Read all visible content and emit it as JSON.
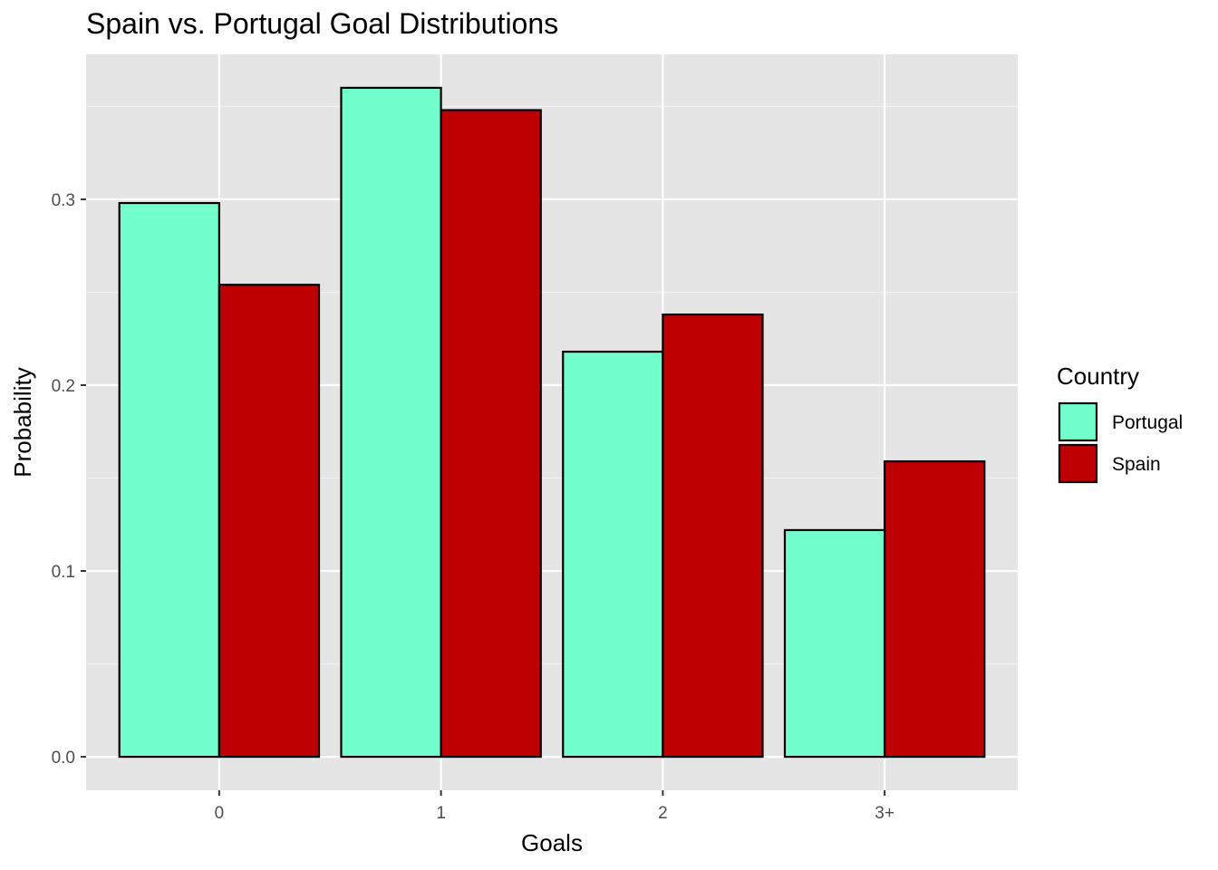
{
  "chart_data": {
    "type": "bar",
    "title": "Spain vs. Portugal Goal Distributions",
    "xlabel": "Goals",
    "ylabel": "Probability",
    "categories": [
      "0",
      "1",
      "2",
      "3+"
    ],
    "series": [
      {
        "name": "Portugal",
        "color": "#73FFCC",
        "values": [
          0.298,
          0.36,
          0.218,
          0.122
        ]
      },
      {
        "name": "Spain",
        "color": "#BD0000",
        "values": [
          0.254,
          0.348,
          0.238,
          0.159
        ]
      }
    ],
    "ylim": [
      -0.018,
      0.378
    ],
    "yticks": [
      0.0,
      0.1,
      0.2,
      0.3
    ],
    "ytick_labels": [
      "0.0",
      "0.1",
      "0.2",
      "0.3"
    ],
    "legend": {
      "title": "Country",
      "position": "right"
    },
    "grid": true
  }
}
